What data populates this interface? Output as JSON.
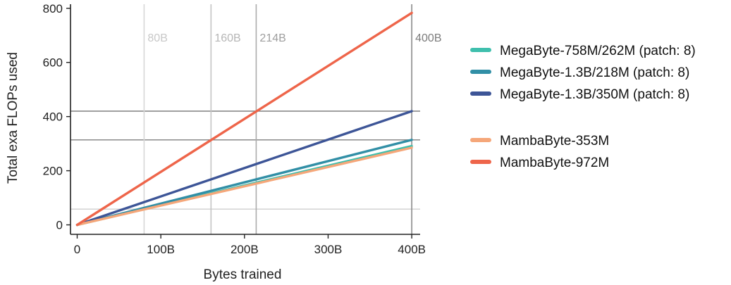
{
  "chart_data": {
    "type": "line",
    "title": "",
    "xlabel": "Bytes trained",
    "ylabel": "Total exa FLOPs used",
    "xlim": [
      -8,
      410
    ],
    "ylim": [
      -35,
      815
    ],
    "x_ticks": [
      0,
      100,
      200,
      300,
      400
    ],
    "x_tick_labels": [
      "0",
      "100B",
      "200B",
      "300B",
      "400B"
    ],
    "y_ticks": [
      0,
      200,
      400,
      600,
      800
    ],
    "y_tick_labels": [
      "0",
      "200",
      "400",
      "600",
      "800"
    ],
    "grid": false,
    "legend_position": "right",
    "legend_groups": [
      [
        "MegaByte-758M/262M (patch: 8)",
        "MegaByte-1.3B/218M (patch: 8)",
        "MegaByte-1.3B/350M (patch: 8)"
      ],
      [
        "MambaByte-353M",
        "MambaByte-972M"
      ]
    ],
    "series": [
      {
        "name": "MegaByte-758M/262M (patch: 8)",
        "color": "#3fbfad",
        "x": [
          0,
          400
        ],
        "y": [
          0,
          291
        ]
      },
      {
        "name": "MegaByte-1.3B/218M (patch: 8)",
        "color": "#318fa6",
        "x": [
          0,
          400
        ],
        "y": [
          0,
          314
        ]
      },
      {
        "name": "MegaByte-1.3B/350M (patch: 8)",
        "color": "#3d5597",
        "x": [
          0,
          400
        ],
        "y": [
          0,
          420
        ]
      },
      {
        "name": "MambaByte-353M",
        "color": "#f5a77a",
        "x": [
          0,
          400
        ],
        "y": [
          0,
          285
        ]
      },
      {
        "name": "MambaByte-972M",
        "color": "#ee654a",
        "x": [
          0,
          400
        ],
        "y": [
          0,
          783
        ]
      }
    ],
    "reference_vlines": [
      {
        "x": 80,
        "label": "80B",
        "color": "#d6d6d6",
        "text_color": "#c8c8c8"
      },
      {
        "x": 160,
        "label": "160B",
        "color": "#c4c4c4",
        "text_color": "#b6b6b6"
      },
      {
        "x": 214,
        "label": "214B",
        "color": "#ababab",
        "text_color": "#9e9e9e"
      },
      {
        "x": 400,
        "label": "400B",
        "color": "#8a8a8a",
        "text_color": "#7c7c7c"
      }
    ],
    "reference_hlines": [
      {
        "y": 58,
        "color": "#d6d6d6"
      },
      {
        "y": 314,
        "color": "#8a8a8a"
      },
      {
        "y": 420,
        "color": "#8a8a8a"
      }
    ]
  }
}
